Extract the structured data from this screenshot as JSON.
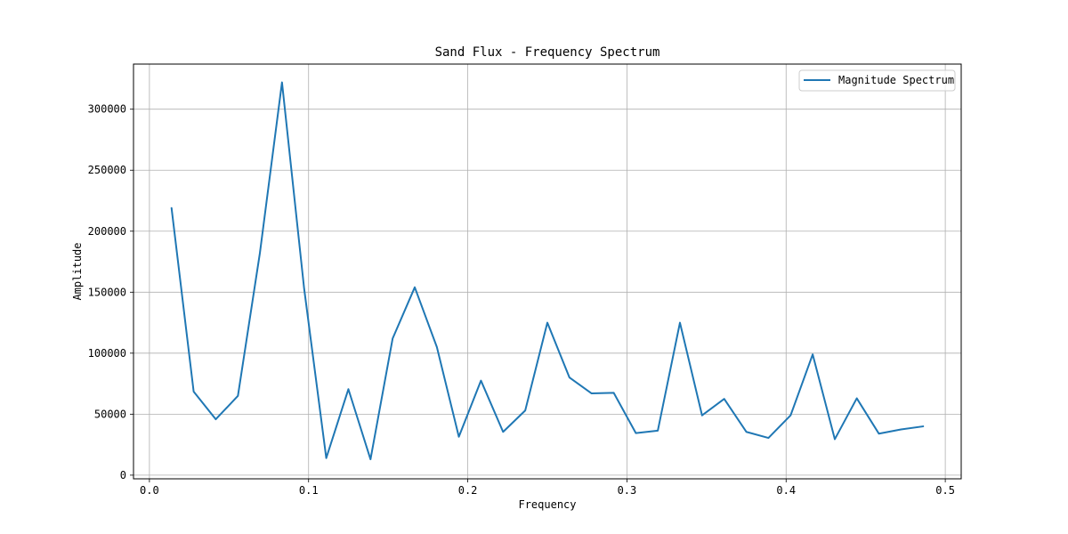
{
  "chart_data": {
    "type": "line",
    "title": "Sand Flux - Frequency Spectrum",
    "xlabel": "Frequency",
    "ylabel": "Amplitude",
    "xlim": [
      -0.01,
      0.51
    ],
    "ylim": [
      -3000,
      337000
    ],
    "x_ticks": [
      0.0,
      0.1,
      0.2,
      0.3,
      0.4,
      0.5
    ],
    "x_tick_labels": [
      "0.0",
      "0.1",
      "0.2",
      "0.3",
      "0.4",
      "0.5"
    ],
    "y_ticks": [
      0,
      50000,
      100000,
      150000,
      200000,
      250000,
      300000
    ],
    "y_tick_labels": [
      "0",
      "50000",
      "100000",
      "150000",
      "200000",
      "250000",
      "300000"
    ],
    "grid": true,
    "legend_position": "top-right",
    "series": [
      {
        "name": "Magnitude Spectrum",
        "color": "#1f77b4",
        "x": [
          0.0139,
          0.0278,
          0.0417,
          0.0556,
          0.0694,
          0.0833,
          0.0972,
          0.1111,
          0.125,
          0.1389,
          0.1528,
          0.1667,
          0.1806,
          0.1944,
          0.2083,
          0.2222,
          0.2361,
          0.25,
          0.2639,
          0.2778,
          0.2917,
          0.3056,
          0.3194,
          0.3333,
          0.3472,
          0.3611,
          0.375,
          0.3889,
          0.4028,
          0.4167,
          0.4306,
          0.4444,
          0.4583,
          0.4722,
          0.4861
        ],
        "y": [
          219000,
          68500,
          45800,
          65000,
          182000,
          322000,
          153000,
          14000,
          70500,
          13000,
          112000,
          154000,
          105000,
          31500,
          77500,
          35500,
          53000,
          125000,
          80000,
          67000,
          67500,
          34500,
          36500,
          125000,
          49000,
          62500,
          35500,
          30500,
          49000,
          99000,
          29500,
          63000,
          34000,
          37500,
          40000
        ]
      }
    ]
  }
}
